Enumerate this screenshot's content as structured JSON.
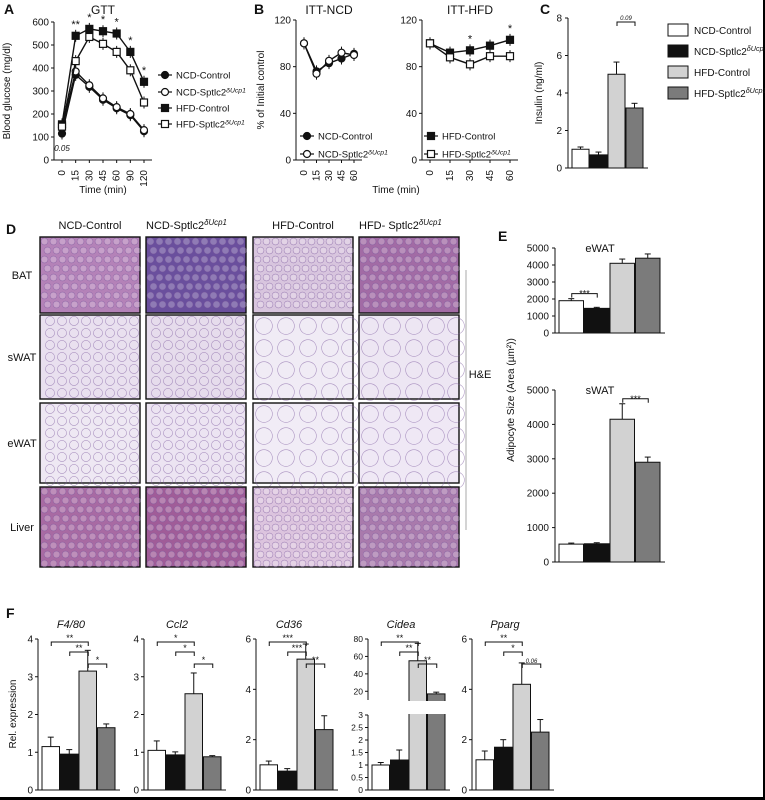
{
  "panel_letters": [
    "A",
    "B",
    "C",
    "D",
    "E",
    "F"
  ],
  "chart_data": [
    {
      "id": "A",
      "type": "line",
      "title": "GTT",
      "xlabel": "Time (min)",
      "ylabel": "Blood glucose (mg/dl)",
      "x": [
        0,
        15,
        30,
        45,
        60,
        90,
        120
      ],
      "ylim": [
        0,
        600
      ],
      "yticks": [
        0,
        100,
        200,
        300,
        400,
        500,
        600
      ],
      "series": [
        {
          "name": "NCD-Control",
          "marker": "circle-filled",
          "values": [
            115,
            370,
            318,
            262,
            225,
            195,
            125
          ]
        },
        {
          "name": "NCD-Sptlc2δUcp1",
          "marker": "circle-open",
          "values": [
            140,
            385,
            325,
            268,
            230,
            200,
            130
          ]
        },
        {
          "name": "HFD-Control",
          "marker": "square-filled",
          "values": [
            155,
            540,
            570,
            560,
            550,
            470,
            340
          ]
        },
        {
          "name": "HFD-Sptlc2δUcp1",
          "marker": "square-open",
          "values": [
            145,
            430,
            535,
            505,
            470,
            390,
            250
          ]
        }
      ],
      "annotations": [
        "**",
        "*",
        "*",
        "*",
        "*",
        "*",
        "0.05"
      ]
    },
    {
      "id": "B1",
      "type": "line",
      "title": "ITT-NCD",
      "xlabel": "",
      "ylabel": "% of Initial control",
      "x": [
        0,
        15,
        30,
        45,
        60
      ],
      "ylim": [
        0,
        120
      ],
      "yticks": [
        0,
        40,
        80,
        120
      ],
      "series": [
        {
          "name": "NCD-Control",
          "marker": "circle-filled",
          "values": [
            100,
            76,
            83,
            87,
            91
          ]
        },
        {
          "name": "NCD-Sptlc2δUcp1",
          "marker": "circle-open",
          "values": [
            100,
            74,
            85,
            92,
            90
          ]
        }
      ]
    },
    {
      "id": "B2",
      "type": "line",
      "title": "ITT-HFD",
      "xlabel": "Time (min)",
      "ylabel": "",
      "x": [
        0,
        15,
        30,
        45,
        60
      ],
      "ylim": [
        0,
        120
      ],
      "yticks": [
        0,
        40,
        80,
        120
      ],
      "series": [
        {
          "name": "HFD-Control",
          "marker": "square-filled",
          "values": [
            100,
            92,
            94,
            98,
            103
          ]
        },
        {
          "name": "HFD-Sptlc2δUcp1",
          "marker": "square-open",
          "values": [
            100,
            88,
            82,
            89,
            89
          ]
        }
      ],
      "annotations": [
        "*",
        "*"
      ]
    },
    {
      "id": "C",
      "type": "bar",
      "ylabel": "Insulin (ng/ml)",
      "categories": [
        "NCD-Control",
        "NCD-Sptlc2δUcp1",
        "HFD-Control",
        "HFD-Sptlc2δUcp1"
      ],
      "values": [
        1.0,
        0.7,
        5.0,
        3.2
      ],
      "errors": [
        0.12,
        0.15,
        0.65,
        0.25
      ],
      "ylim": [
        0,
        8
      ],
      "yticks": [
        0,
        2,
        4,
        6,
        8
      ],
      "annotations": [
        "0.09"
      ]
    },
    {
      "id": "E1",
      "type": "bar",
      "title": "eWAT",
      "ylabel": "Adipocyte Size (Area (µm²))",
      "categories": [
        "NCD-Control",
        "NCD-Sptlc2δUcp1",
        "HFD-Control",
        "HFD-Sptlc2δUcp1"
      ],
      "values": [
        1900,
        1450,
        4100,
        4400
      ],
      "errors": [
        120,
        60,
        250,
        250
      ],
      "ylim": [
        0,
        5000
      ],
      "yticks": [
        0,
        1000,
        2000,
        3000,
        4000,
        5000
      ],
      "annotations": [
        "***"
      ]
    },
    {
      "id": "E2",
      "type": "bar",
      "title": "sWAT",
      "ylabel": "",
      "categories": [
        "NCD-Control",
        "NCD-Sptlc2δUcp1",
        "HFD-Control",
        "HFD-Sptlc2δUcp1"
      ],
      "values": [
        520,
        530,
        4150,
        2900
      ],
      "errors": [
        30,
        30,
        450,
        150
      ],
      "ylim": [
        0,
        5000
      ],
      "yticks": [
        0,
        1000,
        2000,
        3000,
        4000,
        5000
      ],
      "annotations": [
        "***"
      ]
    },
    {
      "id": "F",
      "type": "bar",
      "ylabel": "Rel. expression",
      "categories": [
        "NCD-Control",
        "NCD-Sptlc2δUcp1",
        "HFD-Control",
        "HFD-Sptlc2δUcp1"
      ],
      "genes": [
        {
          "name": "F4/80",
          "values": [
            1.15,
            0.95,
            3.15,
            1.65
          ],
          "errors": [
            0.25,
            0.12,
            0.55,
            0.1
          ],
          "ylim": [
            0,
            4
          ],
          "yticks": [
            "0",
            "1",
            "2",
            "3",
            "4"
          ],
          "annotations": [
            "**",
            "**",
            "*"
          ]
        },
        {
          "name": "Ccl2",
          "values": [
            1.05,
            0.93,
            2.55,
            0.88
          ],
          "errors": [
            0.25,
            0.08,
            0.55,
            0.03
          ],
          "ylim": [
            0,
            4
          ],
          "yticks": [
            "0",
            "1",
            "2",
            "3",
            "4"
          ],
          "annotations": [
            "*",
            "*",
            "*"
          ]
        },
        {
          "name": "Cd36",
          "values": [
            1.0,
            0.75,
            5.2,
            2.4
          ],
          "errors": [
            0.15,
            0.1,
            0.6,
            0.55
          ],
          "ylim": [
            0,
            6
          ],
          "yticks": [
            "0",
            "2",
            "4",
            "6"
          ],
          "annotations": [
            "***",
            "***",
            "**"
          ]
        },
        {
          "name": "Cidea",
          "values": [
            1.0,
            1.2,
            55,
            17
          ],
          "errors": [
            0.1,
            0.4,
            20,
            2
          ],
          "ylim": [
            0,
            80
          ],
          "yticks": [
            "0",
            "0.5",
            "1",
            "1.5",
            "2",
            "2.5",
            "3",
            "20",
            "40",
            "60",
            "80"
          ],
          "annotations": [
            "**",
            "**",
            "**"
          ]
        },
        {
          "name": "Pparg",
          "values": [
            1.2,
            1.7,
            4.2,
            2.3
          ],
          "errors": [
            0.35,
            0.3,
            0.85,
            0.5
          ],
          "ylim": [
            0,
            6
          ],
          "yticks": [
            "0",
            "2",
            "4",
            "6"
          ],
          "annotations": [
            "**",
            "*",
            "0.06"
          ]
        }
      ]
    }
  ],
  "legend": {
    "entries": [
      "NCD-Control",
      "NCD-Sptlc2δUcp1",
      "HFD-Control",
      "HFD-Sptlc2δUcp1"
    ],
    "bar_colors": [
      "#ffffff",
      "#111111",
      "#d2d2d2",
      "#7b7b7b"
    ]
  },
  "histology": {
    "columns": [
      "NCD-Control",
      "NCD-Sptlc2δUcp1",
      "HFD-Control",
      "HFD- Sptlc2δUcp1"
    ],
    "rows": [
      "BAT",
      "sWAT",
      "eWAT",
      "Liver"
    ],
    "stain": "H&E"
  }
}
